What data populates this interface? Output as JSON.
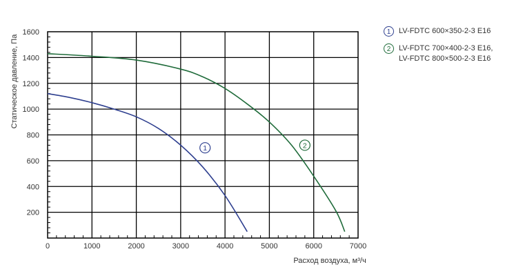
{
  "chart_data": {
    "type": "line",
    "title": "",
    "xlabel": "Расход воздуха, м³/ч",
    "ylabel": "Статическое давление, Па",
    "xlim": [
      0,
      7000
    ],
    "ylim": [
      0,
      1600
    ],
    "xticks": [
      "0",
      "1000",
      "2000",
      "3000",
      "4000",
      "5000",
      "6000",
      "7000"
    ],
    "yticks": [
      "200",
      "400",
      "600",
      "800",
      "1000",
      "1200",
      "1400",
      "1600"
    ],
    "grid": true,
    "legend_position": "right",
    "series": [
      {
        "marker": "1",
        "name": "LV-FDTC 600×350-2-3 E16",
        "color": "#2e3f8f",
        "x": [
          0,
          500,
          1000,
          1500,
          2000,
          2500,
          3000,
          3500,
          4000,
          4500
        ],
        "y": [
          1120,
          1090,
          1050,
          1000,
          940,
          850,
          720,
          550,
          330,
          50
        ]
      },
      {
        "marker": "2",
        "name": "LV-FDTC 700×400-2-3 E16,\nLV-FDTC 800×500-2-3 E16",
        "color": "#1f6b3a",
        "x": [
          0,
          1000,
          2000,
          3000,
          3500,
          4000,
          4500,
          5000,
          5500,
          6000,
          6500,
          6700
        ],
        "y": [
          1430,
          1410,
          1380,
          1310,
          1250,
          1160,
          1040,
          900,
          720,
          480,
          210,
          50
        ]
      }
    ]
  }
}
